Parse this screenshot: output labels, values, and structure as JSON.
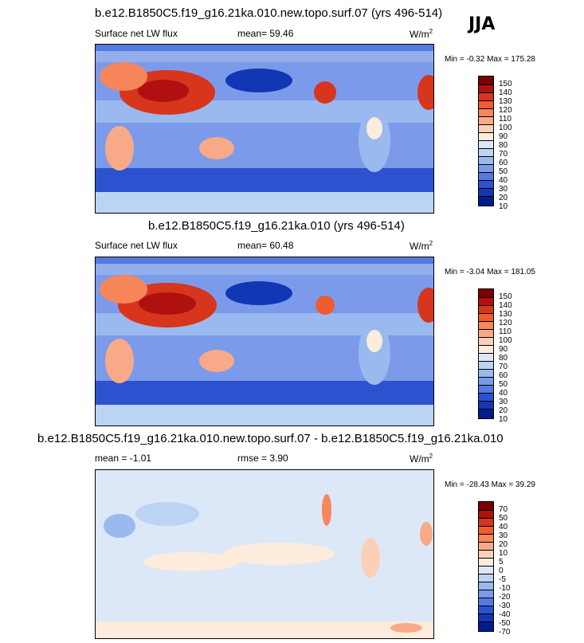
{
  "season": "JJA",
  "panels": [
    {
      "title": "b.e12.B1850C5.f19_g16.21ka.010.new.topo.surf.07 (yrs 496-514)",
      "left_label": "Surface net LW flux",
      "mid_label": "mean=  59.46",
      "units": "W/m",
      "units_sup": "2",
      "minmax": "Min =  -0.32 Max = 175.28",
      "colorbar": {
        "labels": [
          "150",
          "140",
          "130",
          "120",
          "110",
          "100",
          "90",
          "80",
          "70",
          "60",
          "50",
          "40",
          "30",
          "20",
          "10"
        ],
        "colors": [
          "#7a0000",
          "#b01010",
          "#d8361c",
          "#ee5c30",
          "#f7865a",
          "#f8aa88",
          "#fcd0b8",
          "#fdebdc",
          "#dce8f7",
          "#bcd4f3",
          "#9ab9ef",
          "#7b9bea",
          "#5479e0",
          "#2d52cf",
          "#1237b5",
          "#001c8c"
        ]
      }
    },
    {
      "title": "b.e12.B1850C5.f19_g16.21ka.010 (yrs 496-514)",
      "left_label": "Surface net LW flux",
      "mid_label": "mean=  60.48",
      "units": "W/m",
      "units_sup": "2",
      "minmax": "Min =  -3.04 Max = 181.05",
      "colorbar": {
        "labels": [
          "150",
          "140",
          "130",
          "120",
          "110",
          "100",
          "90",
          "80",
          "70",
          "60",
          "50",
          "40",
          "30",
          "20",
          "10"
        ],
        "colors": [
          "#7a0000",
          "#b01010",
          "#d8361c",
          "#ee5c30",
          "#f7865a",
          "#f8aa88",
          "#fcd0b8",
          "#fdebdc",
          "#dce8f7",
          "#bcd4f3",
          "#9ab9ef",
          "#7b9bea",
          "#5479e0",
          "#2d52cf",
          "#1237b5",
          "#001c8c"
        ]
      }
    },
    {
      "title": "b.e12.B1850C5.f19_g16.21ka.010.new.topo.surf.07 - b.e12.B1850C5.f19_g16.21ka.010",
      "left_label": "mean =  -1.01",
      "mid_label": "rmse =   3.90",
      "units": "W/m",
      "units_sup": "2",
      "minmax": "Min = -28.43 Max =  39.29",
      "colorbar": {
        "labels": [
          "70",
          "50",
          "40",
          "30",
          "20",
          "10",
          "5",
          "0",
          "-5",
          "-10",
          "-20",
          "-30",
          "-40",
          "-50",
          "-70"
        ],
        "colors": [
          "#7a0000",
          "#b01010",
          "#d8361c",
          "#ee5c30",
          "#f7865a",
          "#f8aa88",
          "#fcd0b8",
          "#fdebdc",
          "#dce8f7",
          "#bcd4f3",
          "#9ab9ef",
          "#7b9bea",
          "#5479e0",
          "#2d52cf",
          "#1237b5",
          "#001c8c"
        ]
      }
    }
  ],
  "chart_data": [
    {
      "type": "heatmap",
      "title": "b.e12.B1850C5.f19_g16.21ka.010.new.topo.surf.07 (yrs 496-514)",
      "variable": "Surface net LW flux",
      "units": "W/m2",
      "mean": 59.46,
      "min": -0.32,
      "max": 175.28,
      "levels": [
        10,
        20,
        30,
        40,
        50,
        60,
        70,
        80,
        90,
        100,
        110,
        120,
        130,
        140,
        150
      ]
    },
    {
      "type": "heatmap",
      "title": "b.e12.B1850C5.f19_g16.21ka.010 (yrs 496-514)",
      "variable": "Surface net LW flux",
      "units": "W/m2",
      "mean": 60.48,
      "min": -3.04,
      "max": 181.05,
      "levels": [
        10,
        20,
        30,
        40,
        50,
        60,
        70,
        80,
        90,
        100,
        110,
        120,
        130,
        140,
        150
      ]
    },
    {
      "type": "heatmap",
      "title": "b.e12.B1850C5.f19_g16.21ka.010.new.topo.surf.07 - b.e12.B1850C5.f19_g16.21ka.010",
      "units": "W/m2",
      "mean": -1.01,
      "rmse": 3.9,
      "min": -28.43,
      "max": 39.29,
      "levels": [
        -70,
        -50,
        -40,
        -30,
        -20,
        -10,
        -5,
        0,
        5,
        10,
        20,
        30,
        40,
        50,
        70
      ]
    }
  ]
}
